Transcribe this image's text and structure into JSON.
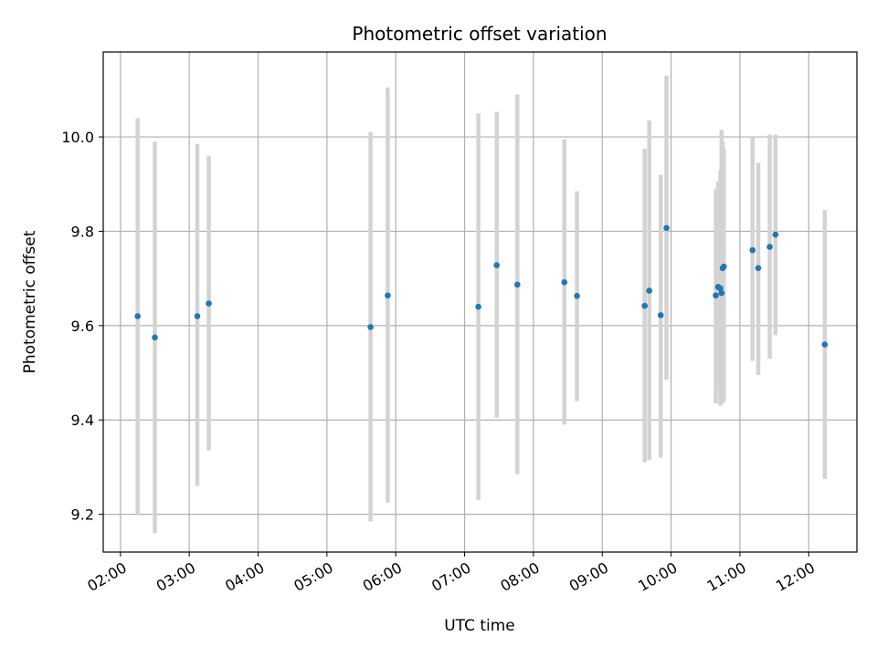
{
  "chart_data": {
    "type": "scatter",
    "title": "Photometric offset variation",
    "xlabel": "UTC time",
    "ylabel": "Photometric offset",
    "x_ticks": [
      "02:00",
      "03:00",
      "04:00",
      "05:00",
      "06:00",
      "07:00",
      "08:00",
      "09:00",
      "10:00",
      "11:00",
      "12:00"
    ],
    "y_ticks": [
      "9.2",
      "9.4",
      "9.6",
      "9.8",
      "10.0"
    ],
    "xlim": [
      "01:45",
      "12:42"
    ],
    "ylim": [
      9.12,
      10.18
    ],
    "grid": true,
    "colors": {
      "point": "#1f77b4",
      "errorbar": "#d3d3d3",
      "grid": "#b0b0b0"
    },
    "points": [
      {
        "t": "02:15",
        "y": 9.62,
        "low": 9.2,
        "high": 10.04
      },
      {
        "t": "02:30",
        "y": 9.575,
        "low": 9.16,
        "high": 9.99
      },
      {
        "t": "03:07",
        "y": 9.62,
        "low": 9.26,
        "high": 9.985
      },
      {
        "t": "03:17",
        "y": 9.647,
        "low": 9.335,
        "high": 9.96
      },
      {
        "t": "05:38",
        "y": 9.597,
        "low": 9.185,
        "high": 10.01
      },
      {
        "t": "05:53",
        "y": 9.664,
        "low": 9.225,
        "high": 10.105
      },
      {
        "t": "07:12",
        "y": 9.64,
        "low": 9.23,
        "high": 10.05
      },
      {
        "t": "07:28",
        "y": 9.728,
        "low": 9.405,
        "high": 10.053
      },
      {
        "t": "07:46",
        "y": 9.687,
        "low": 9.285,
        "high": 10.09
      },
      {
        "t": "08:27",
        "y": 9.692,
        "low": 9.39,
        "high": 9.995
      },
      {
        "t": "08:38",
        "y": 9.663,
        "low": 9.44,
        "high": 9.885
      },
      {
        "t": "09:37",
        "y": 9.642,
        "low": 9.31,
        "high": 9.975
      },
      {
        "t": "09:41",
        "y": 9.674,
        "low": 9.315,
        "high": 10.035
      },
      {
        "t": "09:51",
        "y": 9.622,
        "low": 9.32,
        "high": 9.92
      },
      {
        "t": "09:56",
        "y": 9.807,
        "low": 9.485,
        "high": 10.13
      },
      {
        "t": "10:39",
        "y": 9.664,
        "low": 9.435,
        "high": 9.89
      },
      {
        "t": "10:41",
        "y": 9.682,
        "low": 9.46,
        "high": 9.905
      },
      {
        "t": "10:43",
        "y": 9.679,
        "low": 9.43,
        "high": 9.93
      },
      {
        "t": "10:44",
        "y": 9.669,
        "low": 9.44,
        "high": 10.015
      },
      {
        "t": "10:45",
        "y": 9.722,
        "low": 9.435,
        "high": 9.99
      },
      {
        "t": "10:46",
        "y": 9.725,
        "low": 9.44,
        "high": 9.975
      },
      {
        "t": "11:11",
        "y": 9.76,
        "low": 9.525,
        "high": 10.0
      },
      {
        "t": "11:16",
        "y": 9.722,
        "low": 9.495,
        "high": 9.945
      },
      {
        "t": "11:26",
        "y": 9.767,
        "low": 9.53,
        "high": 10.005
      },
      {
        "t": "11:31",
        "y": 9.793,
        "low": 9.58,
        "high": 10.005
      },
      {
        "t": "12:14",
        "y": 9.56,
        "low": 9.275,
        "high": 9.845
      }
    ]
  }
}
